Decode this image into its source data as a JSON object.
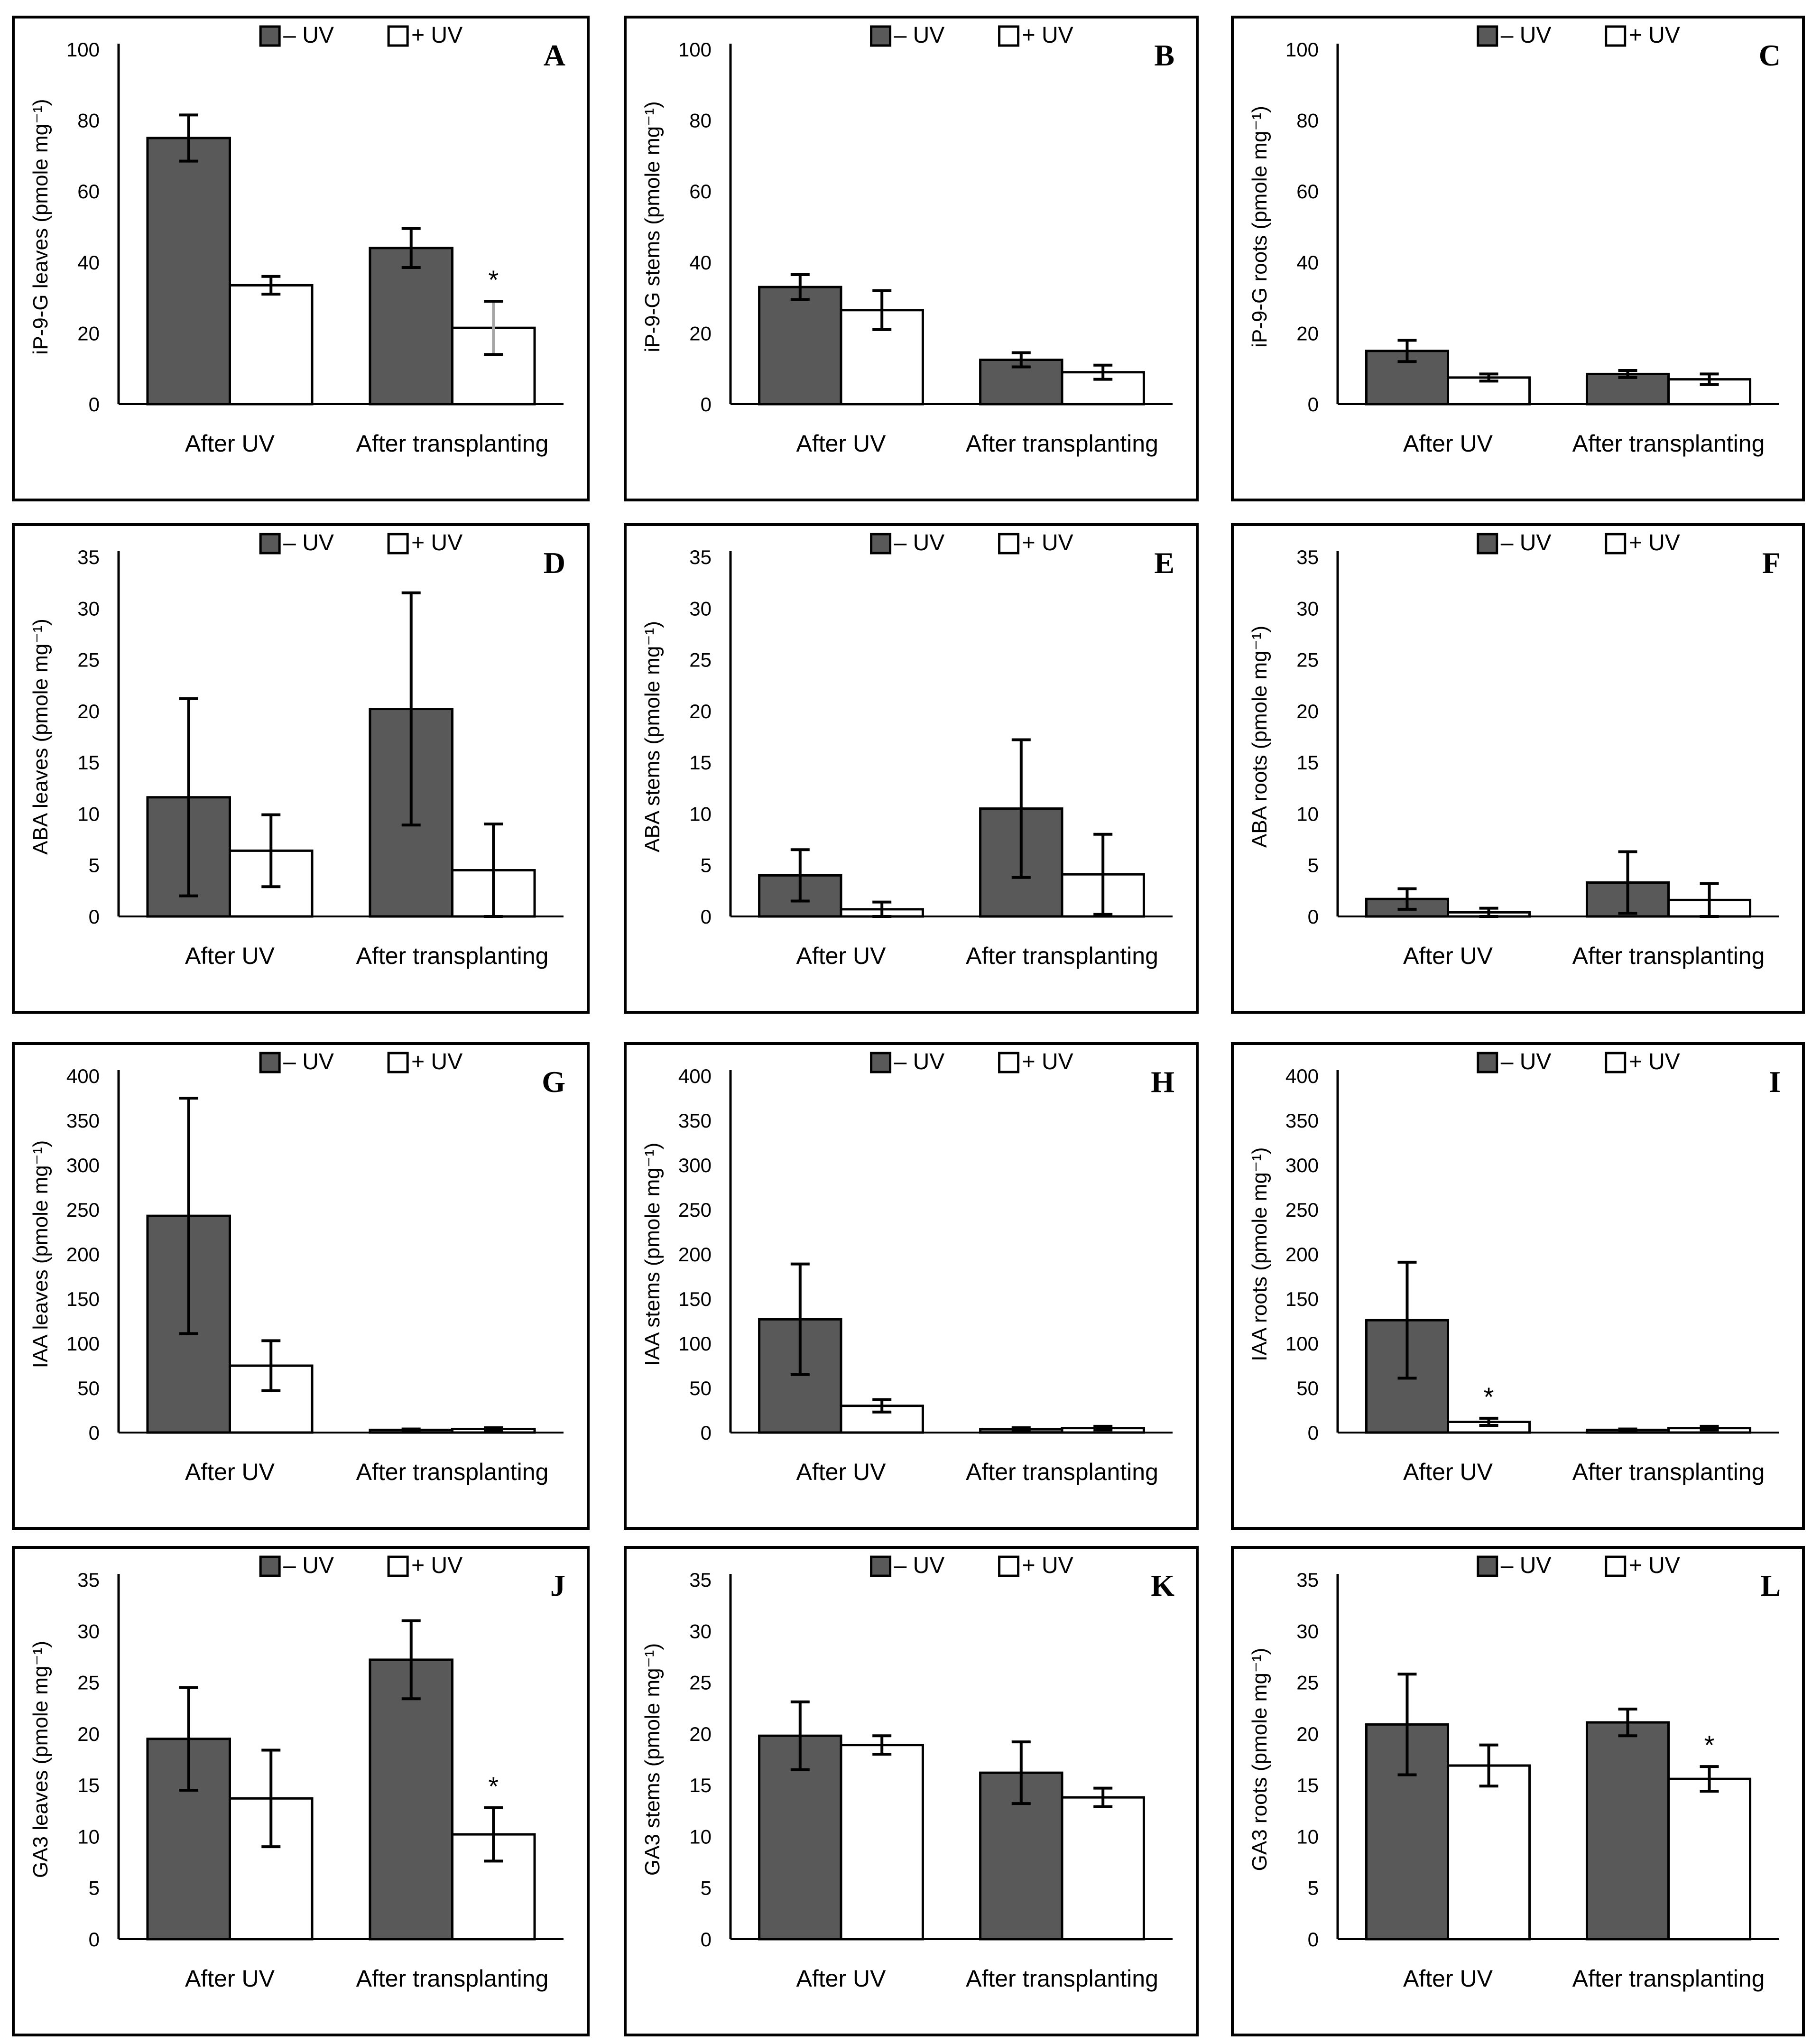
{
  "legend": {
    "minus_uv": "– UV",
    "plus_uv": "+ UV"
  },
  "colors": {
    "minus_uv": "#595959",
    "plus_uv": "#ffffff",
    "frame": "#000000",
    "sig_errbar": "#a6a6a6"
  },
  "significance_marker": "*",
  "chart_data": [
    {
      "id": "A",
      "type": "bar",
      "categories": [
        "After UV",
        "After transplanting"
      ],
      "ylabel": "iP-9-G leaves (pmole mg⁻¹)",
      "ylim": [
        0,
        100
      ],
      "yticks": [
        0,
        20,
        40,
        60,
        80,
        100
      ],
      "series": [
        {
          "name": "– UV",
          "values": [
            75,
            44
          ],
          "errors": [
            6.5,
            5.5
          ]
        },
        {
          "name": "+ UV",
          "values": [
            33.5,
            21.5
          ],
          "errors": [
            2.5,
            7.5
          ]
        }
      ],
      "significant": [
        [
          1,
          1
        ]
      ]
    },
    {
      "id": "B",
      "type": "bar",
      "categories": [
        "After UV",
        "After transplanting"
      ],
      "ylabel": "iP-9-G stems (pmole mg⁻¹)",
      "ylim": [
        0,
        100
      ],
      "yticks": [
        0,
        20,
        40,
        60,
        80,
        100
      ],
      "series": [
        {
          "name": "– UV",
          "values": [
            33,
            12.5
          ],
          "errors": [
            3.5,
            2
          ]
        },
        {
          "name": "+ UV",
          "values": [
            26.5,
            9
          ],
          "errors": [
            5.5,
            2
          ]
        }
      ],
      "significant": []
    },
    {
      "id": "C",
      "type": "bar",
      "categories": [
        "After UV",
        "After transplanting"
      ],
      "ylabel": "iP-9-G roots (pmole mg⁻¹)",
      "ylim": [
        0,
        100
      ],
      "yticks": [
        0,
        20,
        40,
        60,
        80,
        100
      ],
      "series": [
        {
          "name": "– UV",
          "values": [
            15,
            8.5
          ],
          "errors": [
            3,
            1
          ]
        },
        {
          "name": "+ UV",
          "values": [
            7.5,
            7
          ],
          "errors": [
            1,
            1.5
          ]
        }
      ],
      "significant": []
    },
    {
      "id": "D",
      "type": "bar",
      "categories": [
        "After UV",
        "After transplanting"
      ],
      "ylabel": "ABA leaves (pmole mg⁻¹)",
      "ylim": [
        0,
        35
      ],
      "yticks": [
        0,
        5,
        10,
        15,
        20,
        25,
        30,
        35
      ],
      "series": [
        {
          "name": "– UV",
          "values": [
            11.6,
            20.2
          ],
          "errors": [
            9.6,
            11.3
          ]
        },
        {
          "name": "+ UV",
          "values": [
            6.4,
            4.5
          ],
          "errors": [
            3.5,
            4.5
          ]
        }
      ],
      "significant": []
    },
    {
      "id": "E",
      "type": "bar",
      "categories": [
        "After UV",
        "After transplanting"
      ],
      "ylabel": "ABA stems (pmole mg⁻¹)",
      "ylim": [
        0,
        35
      ],
      "yticks": [
        0,
        5,
        10,
        15,
        20,
        25,
        30,
        35
      ],
      "series": [
        {
          "name": "– UV",
          "values": [
            4,
            10.5
          ],
          "errors": [
            2.5,
            6.7
          ]
        },
        {
          "name": "+ UV",
          "values": [
            0.7,
            4.1
          ],
          "errors": [
            0.7,
            3.9
          ]
        }
      ],
      "significant": []
    },
    {
      "id": "F",
      "type": "bar",
      "categories": [
        "After UV",
        "After transplanting"
      ],
      "ylabel": "ABA roots (pmole mg⁻¹)",
      "ylim": [
        0,
        35
      ],
      "yticks": [
        0,
        5,
        10,
        15,
        20,
        25,
        30,
        35
      ],
      "series": [
        {
          "name": "– UV",
          "values": [
            1.7,
            3.3
          ],
          "errors": [
            1,
            3
          ]
        },
        {
          "name": "+ UV",
          "values": [
            0.4,
            1.6
          ],
          "errors": [
            0.4,
            1.6
          ]
        }
      ],
      "significant": []
    },
    {
      "id": "G",
      "type": "bar",
      "categories": [
        "After UV",
        "After transplanting"
      ],
      "ylabel": "IAA leaves (pmole mg⁻¹)",
      "ylim": [
        0,
        400
      ],
      "yticks": [
        0,
        50,
        100,
        150,
        200,
        250,
        300,
        350,
        400
      ],
      "series": [
        {
          "name": "– UV",
          "values": [
            243,
            3
          ],
          "errors": [
            132,
            1
          ]
        },
        {
          "name": "+ UV",
          "values": [
            75,
            4
          ],
          "errors": [
            28,
            1.5
          ]
        }
      ],
      "significant": []
    },
    {
      "id": "H",
      "type": "bar",
      "categories": [
        "After UV",
        "After transplanting"
      ],
      "ylabel": "IAA stems (pmole mg⁻¹)",
      "ylim": [
        0,
        400
      ],
      "yticks": [
        0,
        50,
        100,
        150,
        200,
        250,
        300,
        350,
        400
      ],
      "series": [
        {
          "name": "– UV",
          "values": [
            127,
            4
          ],
          "errors": [
            62,
            1.5
          ]
        },
        {
          "name": "+ UV",
          "values": [
            30,
            5
          ],
          "errors": [
            7,
            2
          ]
        }
      ],
      "significant": []
    },
    {
      "id": "I",
      "type": "bar",
      "categories": [
        "After UV",
        "After transplanting"
      ],
      "ylabel": "IAA roots (pmole mg⁻¹)",
      "ylim": [
        0,
        400
      ],
      "yticks": [
        0,
        50,
        100,
        150,
        200,
        250,
        300,
        350,
        400
      ],
      "series": [
        {
          "name": "– UV",
          "values": [
            126,
            3
          ],
          "errors": [
            65,
            1
          ]
        },
        {
          "name": "+ UV",
          "values": [
            12,
            5
          ],
          "errors": [
            4,
            2
          ]
        }
      ],
      "significant": [
        [
          1,
          0
        ]
      ]
    },
    {
      "id": "J",
      "type": "bar",
      "categories": [
        "After UV",
        "After transplanting"
      ],
      "ylabel": "GA3 leaves (pmole mg⁻¹)",
      "ylim": [
        0,
        35
      ],
      "yticks": [
        0,
        5,
        10,
        15,
        20,
        25,
        30,
        35
      ],
      "series": [
        {
          "name": "– UV",
          "values": [
            19.5,
            27.2
          ],
          "errors": [
            5,
            3.8
          ]
        },
        {
          "name": "+ UV",
          "values": [
            13.7,
            10.2
          ],
          "errors": [
            4.7,
            2.6
          ]
        }
      ],
      "significant": [
        [
          1,
          1
        ]
      ]
    },
    {
      "id": "K",
      "type": "bar",
      "categories": [
        "After UV",
        "After transplanting"
      ],
      "ylabel": "GA3 stems (pmole mg⁻¹)",
      "ylim": [
        0,
        35
      ],
      "yticks": [
        0,
        5,
        10,
        15,
        20,
        25,
        30,
        35
      ],
      "series": [
        {
          "name": "– UV",
          "values": [
            19.8,
            16.2
          ],
          "errors": [
            3.3,
            3
          ]
        },
        {
          "name": "+ UV",
          "values": [
            18.9,
            13.8
          ],
          "errors": [
            0.9,
            0.9
          ]
        }
      ],
      "significant": []
    },
    {
      "id": "L",
      "type": "bar",
      "categories": [
        "After UV",
        "After transplanting"
      ],
      "ylabel": "GA3 roots (pmole mg⁻¹)",
      "ylim": [
        0,
        35
      ],
      "yticks": [
        0,
        5,
        10,
        15,
        20,
        25,
        30,
        35
      ],
      "series": [
        {
          "name": "– UV",
          "values": [
            20.9,
            21.1
          ],
          "errors": [
            4.9,
            1.3
          ]
        },
        {
          "name": "+ UV",
          "values": [
            16.9,
            15.6
          ],
          "errors": [
            2,
            1.2
          ]
        }
      ],
      "significant": [
        [
          1,
          1
        ]
      ]
    }
  ]
}
